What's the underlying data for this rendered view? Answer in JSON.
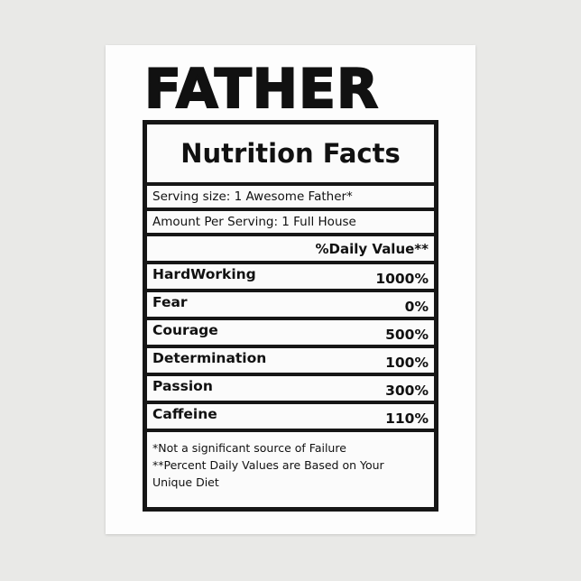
{
  "title": "FATHER",
  "heading": "Nutrition Facts",
  "serving_size": "Serving size: 1 Awesome Father*",
  "amount_per_serving": "Amount Per Serving: 1 Full House",
  "daily_value_header": "%Daily Value**",
  "items": [
    {
      "label": "HardWorking",
      "value": "1000%"
    },
    {
      "label": "Fear",
      "value": "0%"
    },
    {
      "label": "Courage",
      "value": "500%"
    },
    {
      "label": "Determination",
      "value": "100%"
    },
    {
      "label": "Passion",
      "value": "300%"
    },
    {
      "label": "Caffeine",
      "value": "110%"
    }
  ],
  "footnotes": [
    "*Not a significant source of Failure",
    "**Percent Daily Values are Based on Your",
    "Unique Diet"
  ]
}
